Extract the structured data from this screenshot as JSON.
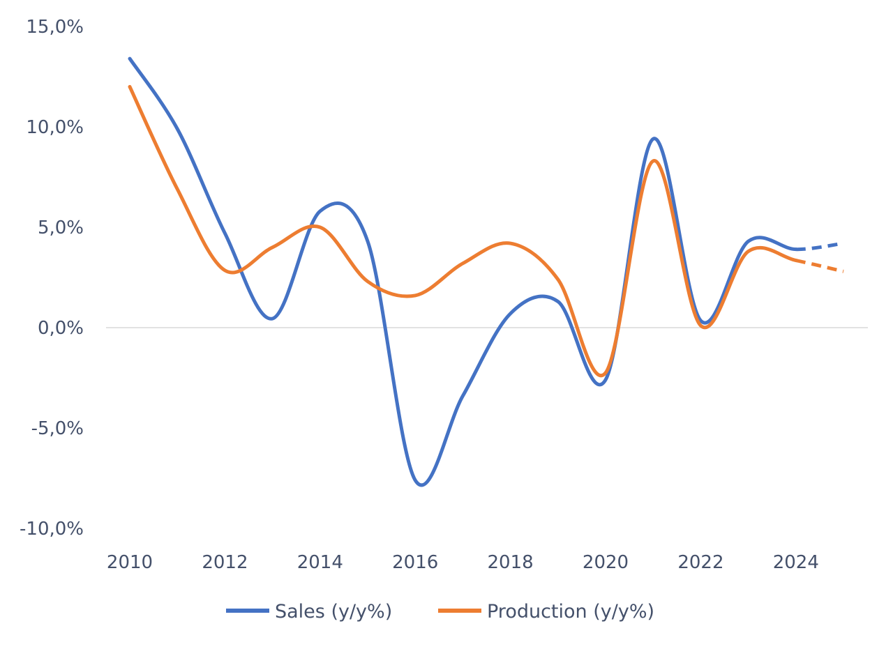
{
  "chart_data": {
    "type": "line",
    "title": "",
    "xlabel": "",
    "ylabel": "",
    "x": [
      2010,
      2011,
      2012,
      2013,
      2014,
      2015,
      2016,
      2017,
      2018,
      2019,
      2020,
      2021,
      2022,
      2023,
      2024,
      2025
    ],
    "x_tick_labels": [
      "2010",
      "2012",
      "2014",
      "2016",
      "2018",
      "2020",
      "2022",
      "2024"
    ],
    "y_tick_labels": [
      "15,0%",
      "10,0%",
      "5,0%",
      "0,0%",
      "-5,0%",
      "-10,0%"
    ],
    "ylim": [
      -10,
      15
    ],
    "grid": false,
    "smoothed": true,
    "forecast_from": 2024,
    "forecast_style": "dashed",
    "legend_position": "bottom",
    "series": [
      {
        "name": "Sales (y/y%)",
        "color": "#4472C4",
        "values": [
          13.4,
          9.9,
          4.7,
          0.45,
          5.8,
          4.3,
          -7.6,
          -3.4,
          0.7,
          1.3,
          -2.6,
          9.4,
          0.35,
          4.3,
          3.9,
          4.2
        ]
      },
      {
        "name": "Production (y/y%)",
        "color": "#ED7D31",
        "values": [
          12.0,
          6.9,
          2.85,
          4.0,
          5.0,
          2.3,
          1.6,
          3.2,
          4.2,
          2.4,
          -2.25,
          8.3,
          0.1,
          3.8,
          3.35,
          2.8
        ]
      }
    ]
  }
}
